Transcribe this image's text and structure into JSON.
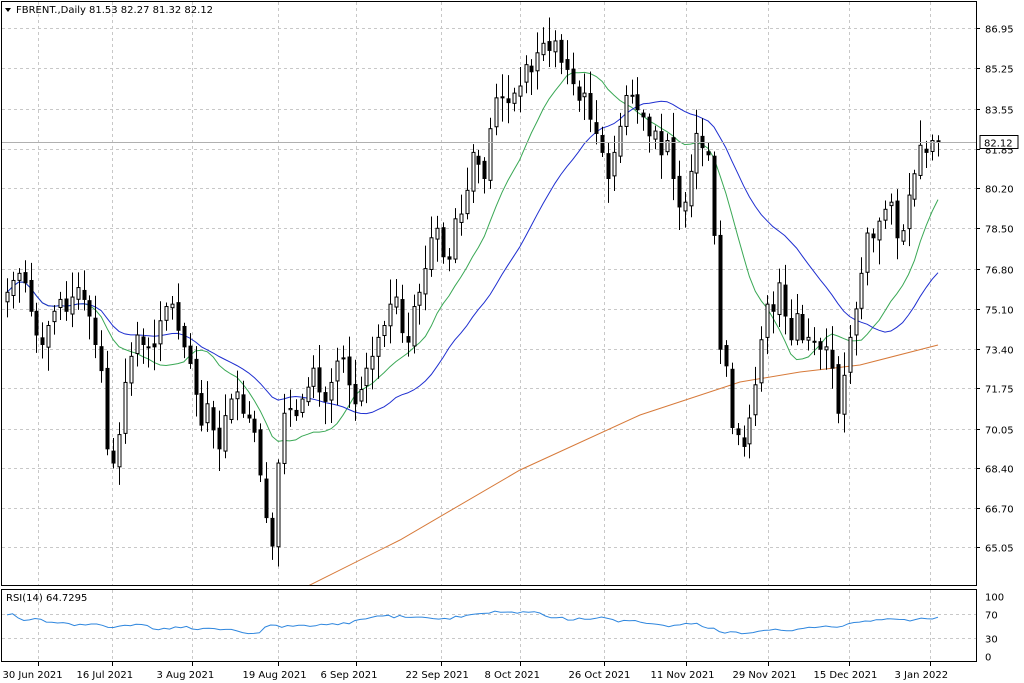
{
  "header": {
    "symbol_label": "FBRENT.,Daily",
    "ohlc_label": "81.53 82.27 81.32 82.12"
  },
  "rsi_panel": {
    "label": "RSI(14) 64.7295"
  },
  "price_badge": {
    "value": "82.12"
  },
  "colors": {
    "background": "#ffffff",
    "grid": "#c8c8c8",
    "candle": "#000000",
    "ma_fast": "#3aa855",
    "ma_mid": "#1f2fd0",
    "ma_slow": "#d77a3a",
    "rsi_line": "#2e86de"
  },
  "chart_data": [
    {
      "type": "candlestick",
      "title": "",
      "ylim": [
        63.5,
        88.0
      ],
      "y_ticks": [
        "86.95",
        "85.25",
        "83.55",
        "81.85",
        "80.20",
        "78.50",
        "76.80",
        "75.10",
        "73.40",
        "71.75",
        "70.05",
        "68.40",
        "66.70",
        "65.05"
      ],
      "x_ticks": [
        "30 Jun 2021",
        "16 Jul 2021",
        "3 Aug 2021",
        "19 Aug 2021",
        "6 Sep 2021",
        "22 Sep 2021",
        "8 Oct 2021",
        "26 Oct 2021",
        "11 Nov 2021",
        "29 Nov 2021",
        "15 Dec 2021",
        "3 Jan 2022"
      ],
      "last_close": 82.12,
      "close": [
        75.8,
        76.3,
        76.6,
        76.2,
        75.0,
        74.0,
        73.6,
        74.4,
        75.0,
        75.5,
        75.0,
        75.6,
        76.0,
        75.5,
        74.8,
        73.6,
        72.5,
        69.2,
        68.6,
        69.8,
        72.0,
        73.1,
        74.0,
        73.6,
        73.5,
        73.5,
        74.6,
        75.2,
        75.3,
        74.2,
        73.5,
        72.8,
        71.5,
        70.2,
        71.1,
        70.0,
        69.2,
        70.6,
        71.3,
        71.6,
        70.7,
        70.5,
        69.9,
        68.1,
        66.3,
        65.1,
        68.6,
        70.7,
        70.9,
        70.6,
        71.3,
        71.8,
        72.6,
        71.6,
        71.2,
        72.0,
        72.9,
        73.0,
        71.9,
        71.1,
        71.7,
        72.6,
        73.1,
        73.9,
        74.4,
        75.3,
        75.6,
        74.1,
        73.7,
        75.2,
        75.8,
        76.8,
        78.1,
        78.5,
        77.3,
        77.2,
        78.9,
        79.1,
        80.1,
        81.7,
        81.2,
        80.6,
        82.7,
        84.0,
        84.0,
        83.8,
        84.2,
        84.5,
        85.4,
        85.1,
        85.9,
        86.3,
        86.0,
        86.4,
        85.5,
        85.2,
        84.6,
        83.9,
        84.2,
        83.1,
        82.5,
        81.7,
        80.6,
        81.7,
        82.8,
        84.1,
        84.1,
        83.5,
        83.2,
        82.4,
        82.6,
        81.6,
        82.2,
        80.6,
        79.4,
        79.6,
        80.9,
        82.5,
        81.9,
        81.6,
        78.2,
        73.4,
        72.7,
        70.1,
        69.8,
        69.3,
        70.5,
        71.9,
        73.8,
        75.3,
        75.0,
        76.2,
        74.8,
        73.8,
        74.9,
        73.8,
        73.9,
        73.7,
        73.4,
        73.5,
        72.6,
        70.7,
        72.3,
        73.9,
        75.1,
        76.6,
        78.3,
        78.1,
        78.8,
        79.3,
        79.6,
        78.1,
        78.4,
        79.9,
        80.8,
        82.0,
        81.7,
        82.2,
        82.12
      ]
    },
    {
      "type": "line",
      "title": "",
      "ylim": [
        0,
        100
      ],
      "y_ticks": [
        "100",
        "70",
        "30",
        "0"
      ],
      "levels": [
        70,
        30
      ],
      "series": [
        {
          "name": "RSI(14)",
          "values": [
            68.5,
            70.3,
            63.3,
            59.1,
            60.2,
            62.5,
            61.3,
            56.5,
            56.1,
            55.0,
            55.6,
            54.2,
            50.7,
            52.9,
            51.6,
            53.4,
            53.3,
            51.2,
            47.6,
            47.5,
            49.9,
            51.4,
            50.5,
            52.9,
            52.5,
            50.9,
            45.1,
            43.8,
            46.1,
            44.9,
            48.5,
            47.1,
            49.3,
            45.0,
            44.0,
            46.0,
            46.3,
            45.6,
            43.8,
            44.4,
            44.4,
            41.8,
            39.0,
            37.3,
            37.7,
            38.7,
            48.1,
            51.6,
            51.2,
            47.8,
            50.8,
            49.7,
            51.3,
            51.2,
            49.4,
            50.4,
            53.0,
            52.2,
            54.0,
            52.1,
            55.4,
            53.6,
            59.0,
            61.0,
            61.9,
            64.3,
            66.6,
            66.7,
            68.0,
            63.6,
            67.6,
            64.7,
            64.4,
            64.8,
            64.8,
            63.6,
            62.3,
            61.5,
            62.6,
            61.4,
            66.3,
            64.7,
            68.0,
            69.3,
            70.4,
            71.0,
            71.5,
            74.8,
            72.9,
            73.1,
            73.3,
            71.4,
            73.9,
            72.8,
            73.8,
            71.7,
            66.7,
            63.7,
            63.9,
            64.6,
            59.8,
            60.0,
            63.3,
            61.3,
            61.2,
            62.9,
            65.0,
            63.0,
            60.8,
            56.7,
            59.3,
            58.8,
            59.2,
            56.2,
            54.3,
            53.7,
            52.7,
            51.2,
            48.8,
            51.1,
            51.8,
            54.4,
            53.4,
            54.5,
            49.0,
            46.2,
            46.5,
            40.6,
            38.1,
            40.5,
            40.0,
            37.1,
            38.0,
            39.0,
            41.2,
            42.7,
            43.2,
            44.9,
            42.9,
            42.0,
            42.2,
            44.8,
            46.0,
            47.8,
            47.4,
            48.5,
            50.0,
            48.5,
            48.0,
            49.6,
            53.9,
            55.8,
            56.5,
            58.3,
            58.0,
            60.5,
            60.4,
            62.2,
            61.6,
            61.0,
            60.9,
            58.4,
            60.9,
            63.1,
            62.0,
            61.7,
            64.7
          ]
        }
      ]
    }
  ]
}
